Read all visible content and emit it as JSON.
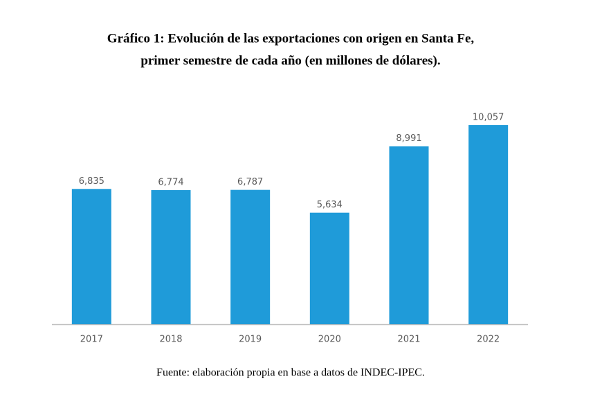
{
  "chart_data": {
    "type": "bar",
    "title": [
      "Gráfico 1: Evolución de las exportaciones con origen en Santa Fe,",
      "primer semestre de cada año (en millones de dólares)."
    ],
    "categories": [
      "2017",
      "2018",
      "2019",
      "2020",
      "2021",
      "2022"
    ],
    "values": [
      6835,
      6774,
      6787,
      5634,
      8991,
      10057
    ],
    "value_labels": [
      "6,835",
      "6,774",
      "6,787",
      "5,634",
      "8,991",
      "10,057"
    ],
    "color": "#1f9bd9",
    "ylim": [
      0,
      10057
    ],
    "source": "Fuente: elaboración propia en base a datos de INDEC-IPEC."
  }
}
